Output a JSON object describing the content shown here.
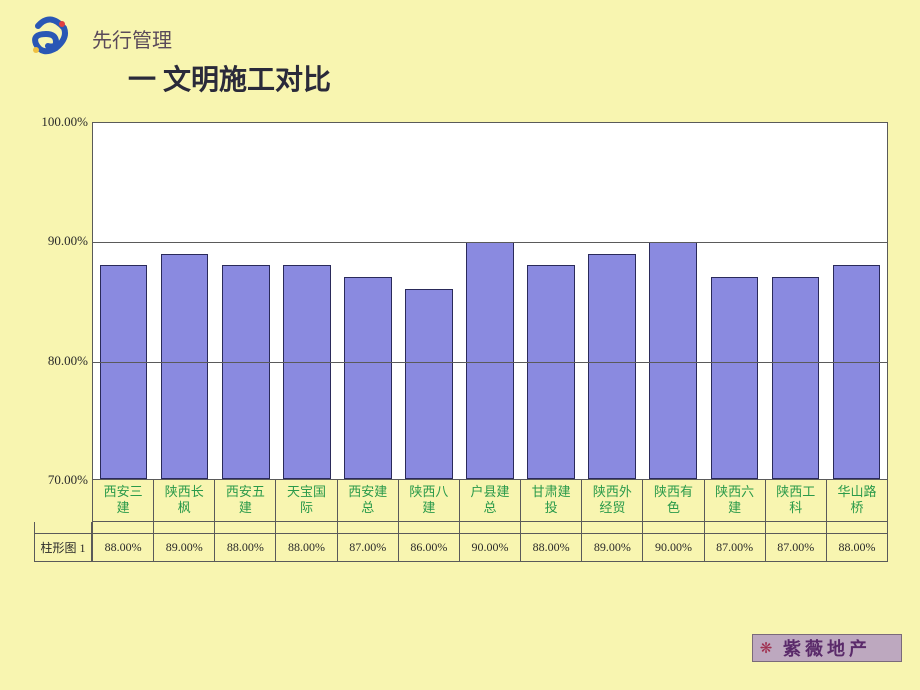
{
  "slide": {
    "background_color": "#f8f5b0",
    "header": "先行管理",
    "header_color": "#5a4a5a",
    "title": "一 文明施工对比",
    "title_color": "#2a2a3a",
    "logo_colors": {
      "swirl": "#2a57b5",
      "dot1": "#e04040",
      "dot2": "#f0c040"
    }
  },
  "chart": {
    "type": "bar",
    "plot_background": "#ffffff",
    "grid_color": "#5a5a5a",
    "bar_color": "#8a8ae0",
    "bar_border": "#2a2a5a",
    "xlabel_color": "#2a9a4a",
    "value_text_color": "#2a2a2a",
    "ylabel_color": "#2a2a2a",
    "ylim": [
      70,
      100
    ],
    "yticks": [
      70,
      80,
      90,
      100
    ],
    "ytick_labels": [
      "70.00%",
      "80.00%",
      "90.00%",
      "100.00%"
    ],
    "categories": [
      "西安三建",
      "陕西长枫",
      "西安五建",
      "天宝国际",
      "西安建总",
      "陕西八建",
      "户县建总",
      "甘肃建投",
      "陕西外经贸",
      "陕西有色",
      "陕西六建",
      "陕西工科",
      "华山路桥"
    ],
    "category_lines": [
      [
        "西安三",
        "建"
      ],
      [
        "陕西长",
        "枫"
      ],
      [
        "西安五",
        "建"
      ],
      [
        "天宝国",
        "际"
      ],
      [
        "西安建",
        "总"
      ],
      [
        "陕西八",
        "建"
      ],
      [
        "户县建",
        "总"
      ],
      [
        "甘肃建",
        "投"
      ],
      [
        "陕西外",
        "经贸"
      ],
      [
        "陕西有",
        "色"
      ],
      [
        "陕西六",
        "建"
      ],
      [
        "陕西工",
        "科"
      ],
      [
        "华山路",
        "桥"
      ]
    ],
    "values": [
      88.0,
      89.0,
      88.0,
      88.0,
      87.0,
      86.0,
      90.0,
      88.0,
      89.0,
      90.0,
      87.0,
      87.0,
      88.0
    ],
    "value_labels": [
      "88.00%",
      "89.00%",
      "88.00%",
      "88.00%",
      "87.00%",
      "86.00%",
      "90.00%",
      "88.00%",
      "89.00%",
      "90.00%",
      "87.00%",
      "87.00%",
      "88.00%"
    ],
    "series_label": "柱形图 1"
  },
  "footer": {
    "background_color": "#bda8bf",
    "icon_color": "#a03050",
    "text": "紫薇地产",
    "text_color": "#5a2a6a"
  }
}
